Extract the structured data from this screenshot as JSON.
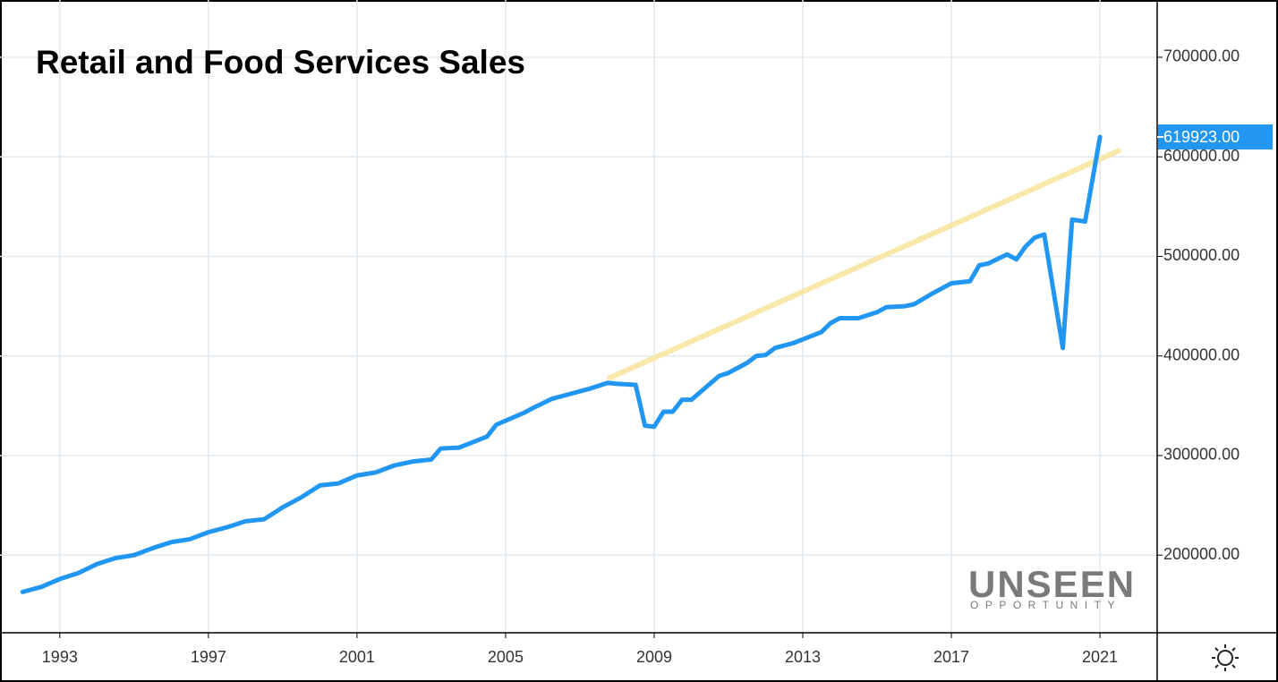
{
  "chart_data": {
    "type": "line",
    "title": "Retail and Food Services Sales",
    "watermark": {
      "title": "UNSEEN",
      "subtitle": "OPPORTUNITY"
    },
    "xlim": [
      1991.39,
      2022.54
    ],
    "xticks": [
      1993,
      1997,
      2001,
      2005,
      2009,
      2013,
      2017,
      2021
    ],
    "ylim": [
      122000,
      757500
    ],
    "yticks": [
      {
        "value": 200000,
        "label": "200000.00"
      },
      {
        "value": 300000,
        "label": "300000.00"
      },
      {
        "value": 400000,
        "label": "400000.00"
      },
      {
        "value": 500000,
        "label": "500000.00"
      },
      {
        "value": 600000,
        "label": "600000.00"
      },
      {
        "value": 700000,
        "label": "700000.00"
      }
    ],
    "grid": true,
    "series": [
      {
        "color": "#2196f3",
        "x": [
          1992,
          1992.5,
          1993,
          1993.5,
          1994,
          1994.5,
          1995,
          1995.5,
          1996,
          1996.5,
          1997,
          1997.5,
          1998,
          1998.5,
          1999,
          1999.5,
          2000,
          2000.5,
          2001,
          2001.5,
          2002,
          2002.5,
          2003,
          2003.25,
          2003.75,
          2004.5,
          2004.75,
          2005.5,
          2005.75,
          2006.25,
          2006.75,
          2007.25,
          2007.75,
          2008,
          2008.5,
          2008.75,
          2009,
          2009.25,
          2009.5,
          2009.75,
          2010,
          2010.5,
          2010.75,
          2011,
          2011.5,
          2011.75,
          2012,
          2012.25,
          2012.75,
          2013.5,
          2013.75,
          2014,
          2014.5,
          2015,
          2015.25,
          2015.75,
          2016,
          2016.5,
          2016.75,
          2017,
          2017.5,
          2017.75,
          2018,
          2018.5,
          2018.75,
          2019,
          2019.25,
          2019.5,
          2020,
          2020.25,
          2020.6,
          2021
        ],
        "values": [
          163000,
          168000,
          176000,
          182000,
          191000,
          197000,
          200000,
          207000,
          213000,
          216000,
          223000,
          228000,
          234000,
          236000,
          248000,
          258000,
          270000,
          272000,
          280000,
          283000,
          290000,
          294000,
          296000,
          307000,
          308000,
          319000,
          331000,
          343000,
          348000,
          357000,
          362000,
          367000,
          373000,
          372000,
          371000,
          330000,
          329000,
          344000,
          344000,
          356000,
          356000,
          372000,
          380000,
          383000,
          393000,
          400000,
          401000,
          408000,
          413000,
          424000,
          433000,
          438000,
          438000,
          444000,
          449000,
          450000,
          452000,
          463000,
          468000,
          473000,
          475000,
          491000,
          493000,
          502000,
          497000,
          510000,
          519000,
          522000,
          408000,
          537000,
          535000,
          619923
        ],
        "value_labels": [
          null,
          null,
          null,
          null,
          null,
          null,
          null,
          null,
          null,
          null,
          null,
          null,
          null,
          null,
          null,
          null,
          null,
          null,
          null,
          null,
          null,
          null,
          null,
          null,
          null,
          null,
          null,
          null,
          null,
          null,
          null,
          null,
          null,
          null,
          null,
          null,
          null,
          null,
          null,
          null,
          null,
          null,
          null,
          null,
          null,
          null,
          null,
          null,
          null,
          null,
          null,
          null,
          null,
          null,
          null,
          null,
          null,
          null,
          null,
          null,
          null,
          null,
          null,
          null,
          null,
          null,
          null,
          null,
          null,
          null,
          null,
          "619923.00"
        ]
      },
      {
        "color": "#f7e49a",
        "x": [
          2007.8,
          2021.5
        ],
        "values": [
          378000,
          606000
        ]
      }
    ]
  }
}
